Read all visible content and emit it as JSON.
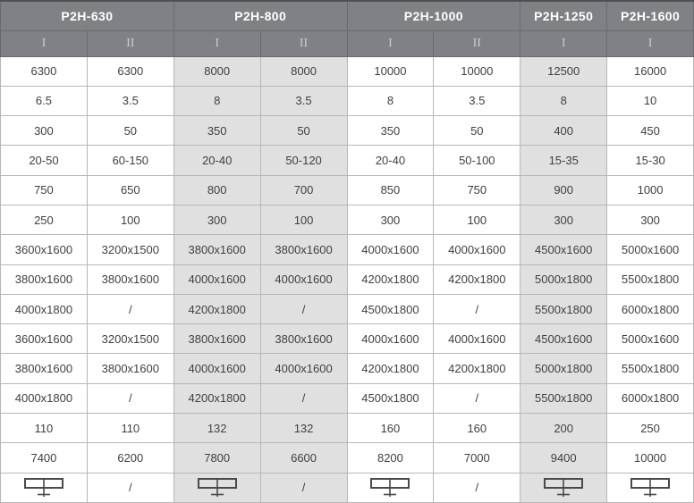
{
  "table": {
    "groups": [
      {
        "label": "P2H-630",
        "columns": [
          "I",
          "II"
        ]
      },
      {
        "label": "P2H-800",
        "columns": [
          "I",
          "II"
        ]
      },
      {
        "label": "P2H-1000",
        "columns": [
          "I",
          "II"
        ]
      },
      {
        "label": "P2H-1250",
        "columns": [
          "I"
        ]
      },
      {
        "label": "P2H-1600",
        "columns": [
          "I"
        ]
      }
    ],
    "shaded_column_indexes": [
      2,
      3,
      6
    ],
    "rows": [
      [
        "6300",
        "6300",
        "8000",
        "8000",
        "10000",
        "10000",
        "12500",
        "16000"
      ],
      [
        "6.5",
        "3.5",
        "8",
        "3.5",
        "8",
        "3.5",
        "8",
        "10"
      ],
      [
        "300",
        "50",
        "350",
        "50",
        "350",
        "50",
        "400",
        "450"
      ],
      [
        "20-50",
        "60-150",
        "20-40",
        "50-120",
        "20-40",
        "50-100",
        "15-35",
        "15-30"
      ],
      [
        "750",
        "650",
        "800",
        "700",
        "850",
        "750",
        "900",
        "1000"
      ],
      [
        "250",
        "100",
        "300",
        "100",
        "300",
        "100",
        "300",
        "300"
      ],
      [
        "3600x1600",
        "3200x1500",
        "3800x1600",
        "3800x1600",
        "4000x1600",
        "4000x1600",
        "4500x1600",
        "5000x1600"
      ],
      [
        "3800x1600",
        "3800x1600",
        "4000x1600",
        "4000x1600",
        "4200x1800",
        "4200x1800",
        "5000x1800",
        "5500x1800"
      ],
      [
        "4000x1800",
        "/",
        "4200x1800",
        "/",
        "4500x1800",
        "/",
        "5500x1800",
        "6000x1800"
      ],
      [
        "3600x1600",
        "3200x1500",
        "3800x1600",
        "3800x1600",
        "4000x1600",
        "4000x1600",
        "4500x1600",
        "5000x1600"
      ],
      [
        "3800x1600",
        "3800x1600",
        "4000x1600",
        "4000x1600",
        "4200x1800",
        "4200x1800",
        "5000x1800",
        "5500x1800"
      ],
      [
        "4000x1800",
        "/",
        "4200x1800",
        "/",
        "4500x1800",
        "/",
        "5500x1800",
        "6000x1800"
      ],
      [
        "110",
        "110",
        "132",
        "132",
        "160",
        "160",
        "200",
        "250"
      ],
      [
        "7400",
        "6200",
        "7800",
        "6600",
        "8200",
        "7000",
        "9400",
        "10000"
      ],
      [
        {
          "icon": "beam-support-icon"
        },
        "/",
        {
          "icon": "beam-support-icon"
        },
        "/",
        {
          "icon": "beam-support-icon"
        },
        "/",
        {
          "icon": "beam-support-icon"
        },
        {
          "icon": "beam-support-icon"
        }
      ]
    ]
  },
  "colors": {
    "header_bg": "#7f8184",
    "header_border": "#696a6d",
    "header_text": "#ffffff",
    "subheader_text": "#cbccce",
    "body_border": "#b7b7b7",
    "body_text": "#3f3f3f",
    "shaded_cell_bg": "#e0e0e1",
    "outer_border": "#c8c8c8",
    "top_rule": "#4e5052",
    "icon_stroke": "#4a4a4a"
  }
}
